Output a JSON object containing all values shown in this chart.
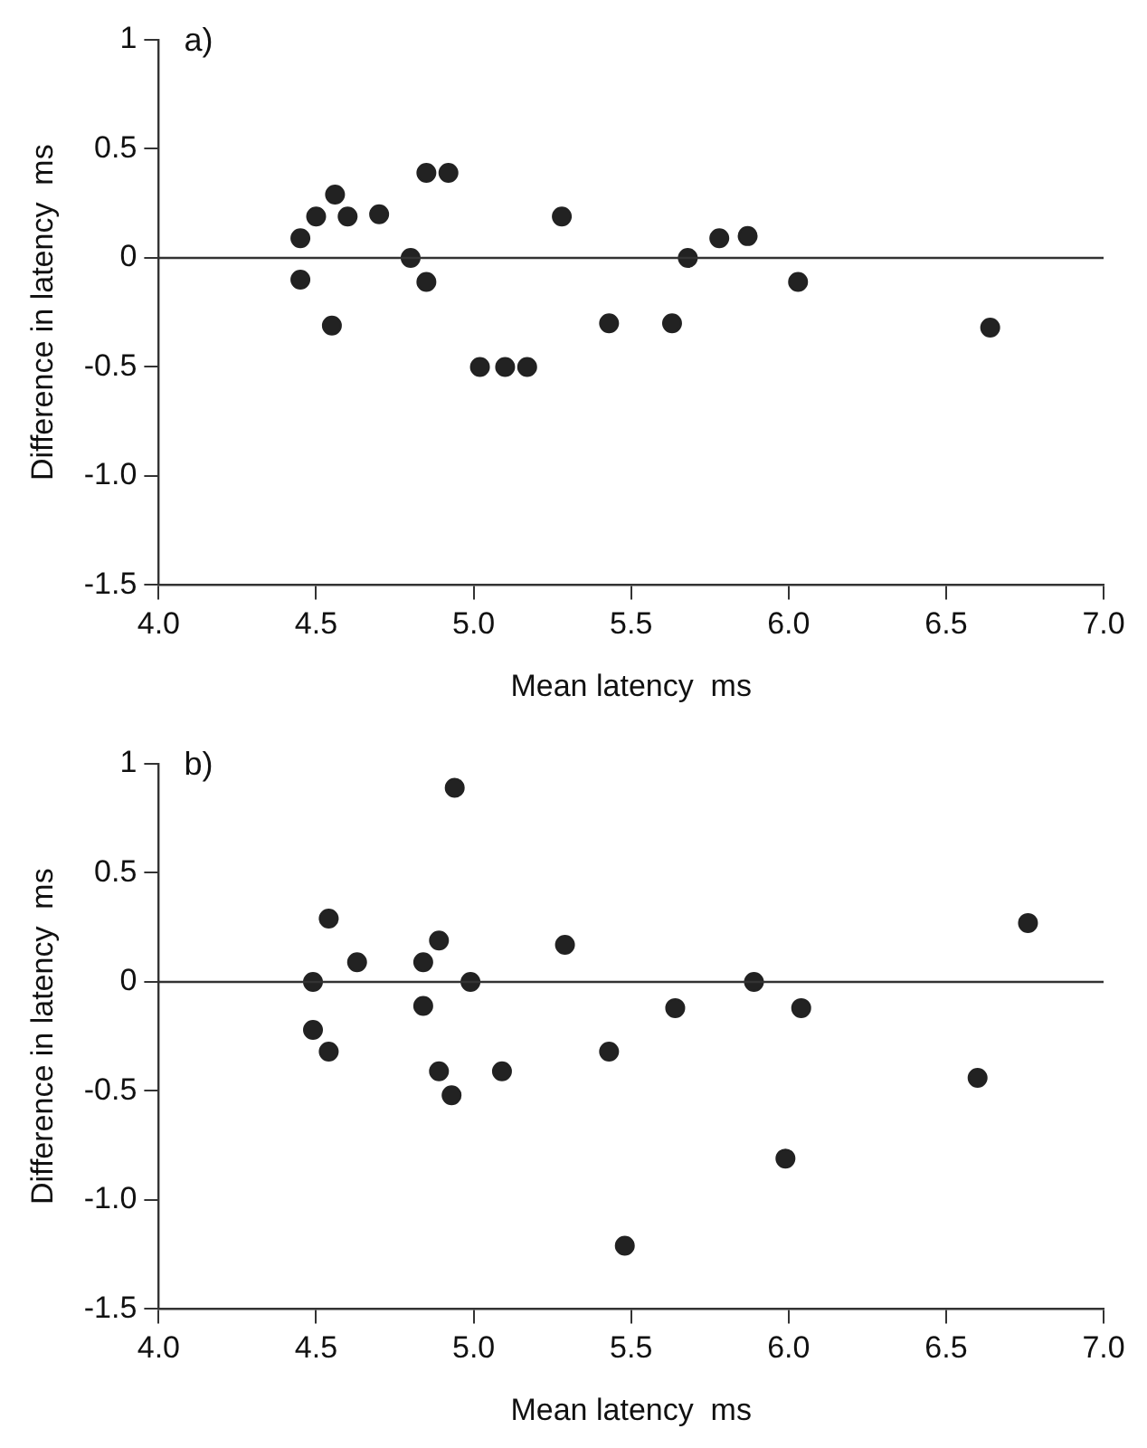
{
  "chart_data": [
    {
      "type": "scatter",
      "xlabel": "Mean latency  ms",
      "ylabel": "Difference in latency  ms",
      "annotations": [
        "a)"
      ],
      "x": [
        4.45,
        4.45,
        4.5,
        4.56,
        4.55,
        4.6,
        4.7,
        4.8,
        4.85,
        4.85,
        4.92,
        5.02,
        5.1,
        5.17,
        5.28,
        5.43,
        5.63,
        5.68,
        5.78,
        5.87,
        6.03,
        6.64
      ],
      "values": [
        0.09,
        -0.1,
        0.19,
        0.29,
        -0.31,
        0.19,
        0.2,
        0.0,
        0.39,
        -0.11,
        0.39,
        -0.5,
        -0.5,
        -0.5,
        0.19,
        -0.3,
        -0.3,
        0.0,
        0.09,
        0.1,
        -0.11,
        -0.32
      ],
      "color": "#222222",
      "marker": "circle",
      "xlim": [
        4,
        7
      ],
      "xticks": [
        {
          "value": 4,
          "label": "4.0"
        },
        4.5,
        {
          "value": 5,
          "label": "5.0"
        },
        5.5,
        {
          "value": 6,
          "label": "6.0"
        },
        6.5,
        {
          "value": 7,
          "label": "7.0"
        }
      ],
      "ylim": [
        -1.5,
        1
      ],
      "yticks": [
        -1.5,
        {
          "value": -1,
          "label": "-1.0"
        },
        -0.5,
        0,
        0.5,
        1
      ],
      "ref_lines": [
        {
          "axis": "y",
          "value": 0,
          "color": "#333333"
        }
      ],
      "grid": false,
      "legend": false
    },
    {
      "type": "scatter",
      "xlabel": "Mean latency  ms",
      "ylabel": "Difference in latency  ms",
      "annotations": [
        "b)"
      ],
      "x": [
        4.49,
        4.49,
        4.54,
        4.54,
        4.63,
        4.84,
        4.84,
        4.89,
        4.89,
        4.93,
        4.94,
        4.99,
        5.09,
        5.29,
        5.43,
        5.48,
        5.64,
        5.89,
        5.99,
        6.04,
        6.6,
        6.76
      ],
      "values": [
        0.0,
        -0.22,
        0.29,
        -0.32,
        0.09,
        0.09,
        -0.11,
        0.19,
        -0.41,
        -0.52,
        0.89,
        0.0,
        -0.41,
        0.17,
        -0.32,
        -1.21,
        -0.12,
        0.0,
        -0.81,
        -0.12,
        -0.44,
        0.27
      ],
      "color": "#222222",
      "marker": "circle",
      "xlim": [
        4,
        7
      ],
      "xticks": [
        {
          "value": 4,
          "label": "4.0"
        },
        4.5,
        {
          "value": 5,
          "label": "5.0"
        },
        5.5,
        {
          "value": 6,
          "label": "6.0"
        },
        6.5,
        {
          "value": 7,
          "label": "7.0"
        }
      ],
      "ylim": [
        -1.5,
        1
      ],
      "yticks": [
        -1.5,
        {
          "value": -1,
          "label": "-1.0"
        },
        -0.5,
        0,
        0.5,
        1
      ],
      "ref_lines": [
        {
          "axis": "y",
          "value": 0,
          "color": "#333333"
        }
      ],
      "grid": false,
      "legend": false
    }
  ]
}
